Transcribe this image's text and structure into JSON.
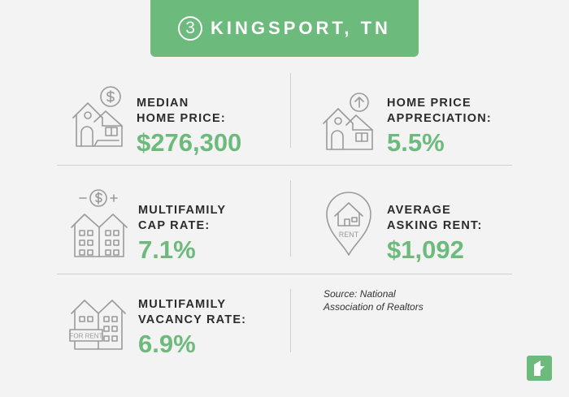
{
  "banner": {
    "number": "3",
    "title": "KINGSPORT, TN"
  },
  "stats": [
    {
      "label": "MEDIAN\nHOME PRICE:",
      "value": "$276,300",
      "icon": "house-dollar-icon"
    },
    {
      "label": "HOME PRICE\nAPPRECIATION:",
      "value": "5.5%",
      "icon": "house-arrow-up-icon"
    },
    {
      "label": "MULTIFAMILY\nCAP RATE:",
      "value": "7.1%",
      "icon": "apartment-dollar-icon"
    },
    {
      "label": "AVERAGE\nASKING RENT:",
      "value": "$1,092",
      "icon": "rent-pin-icon",
      "icon_text": "RENT"
    },
    {
      "label": "MULTIFAMILY\nVACANCY RATE:",
      "value": "6.9%",
      "icon": "for-rent-building-icon",
      "icon_text": "FOR RENT"
    }
  ],
  "source": "Source: National\nAssociation of Realtors",
  "colors": {
    "accent": "#6cba7c",
    "text": "#2b2b2b",
    "icon_stroke": "#9a9a9a",
    "background": "#f3f3f3"
  },
  "logo": {
    "icon": "brand-logo-icon"
  }
}
